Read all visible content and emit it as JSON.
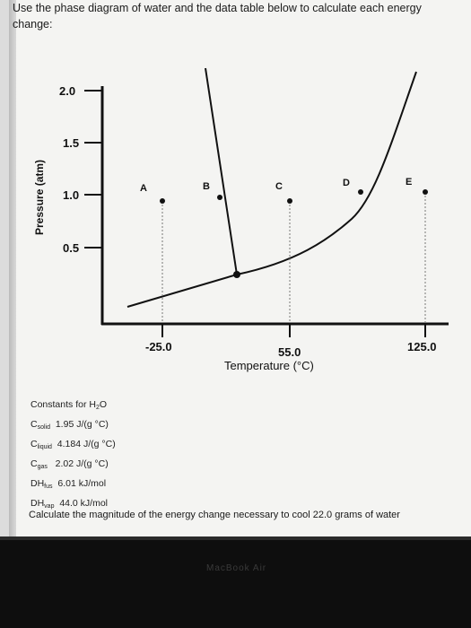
{
  "instruction": {
    "line1": "Use the phase diagram of water and the data table below to calculate each energy",
    "line2": "change:"
  },
  "diagram": {
    "y_axis_title": "Pressure (atm)",
    "x_axis_title": "Temperature (°C)",
    "y_ticks": [
      "2.0",
      "1.5",
      "1.0",
      "0.5"
    ],
    "x_ticks": [
      "-25.0",
      "55.0",
      "125.0"
    ],
    "points": [
      "A",
      "B",
      "C",
      "D",
      "E"
    ]
  },
  "constants": {
    "title_prefix": "Constants for H",
    "title_sub": "2",
    "title_suffix": "O",
    "rows": [
      {
        "symbol": "C",
        "sub": "solid",
        "value": "1.95 J/(g °C)"
      },
      {
        "symbol": "C",
        "sub": "liquid",
        "value": "4.184 J/(g °C)"
      },
      {
        "symbol": "C",
        "sub": "gas",
        "value": "2.02 J/(g °C)"
      },
      {
        "symbol": "DH",
        "sub": "fus",
        "value": "6.01 kJ/mol"
      },
      {
        "symbol": "DH",
        "sub": "vap",
        "value": "44.0 kJ/mol"
      }
    ]
  },
  "question": "Calculate the magnitude of the energy change necessary to cool 22.0 grams of water",
  "device_label": "MacBook Air"
}
